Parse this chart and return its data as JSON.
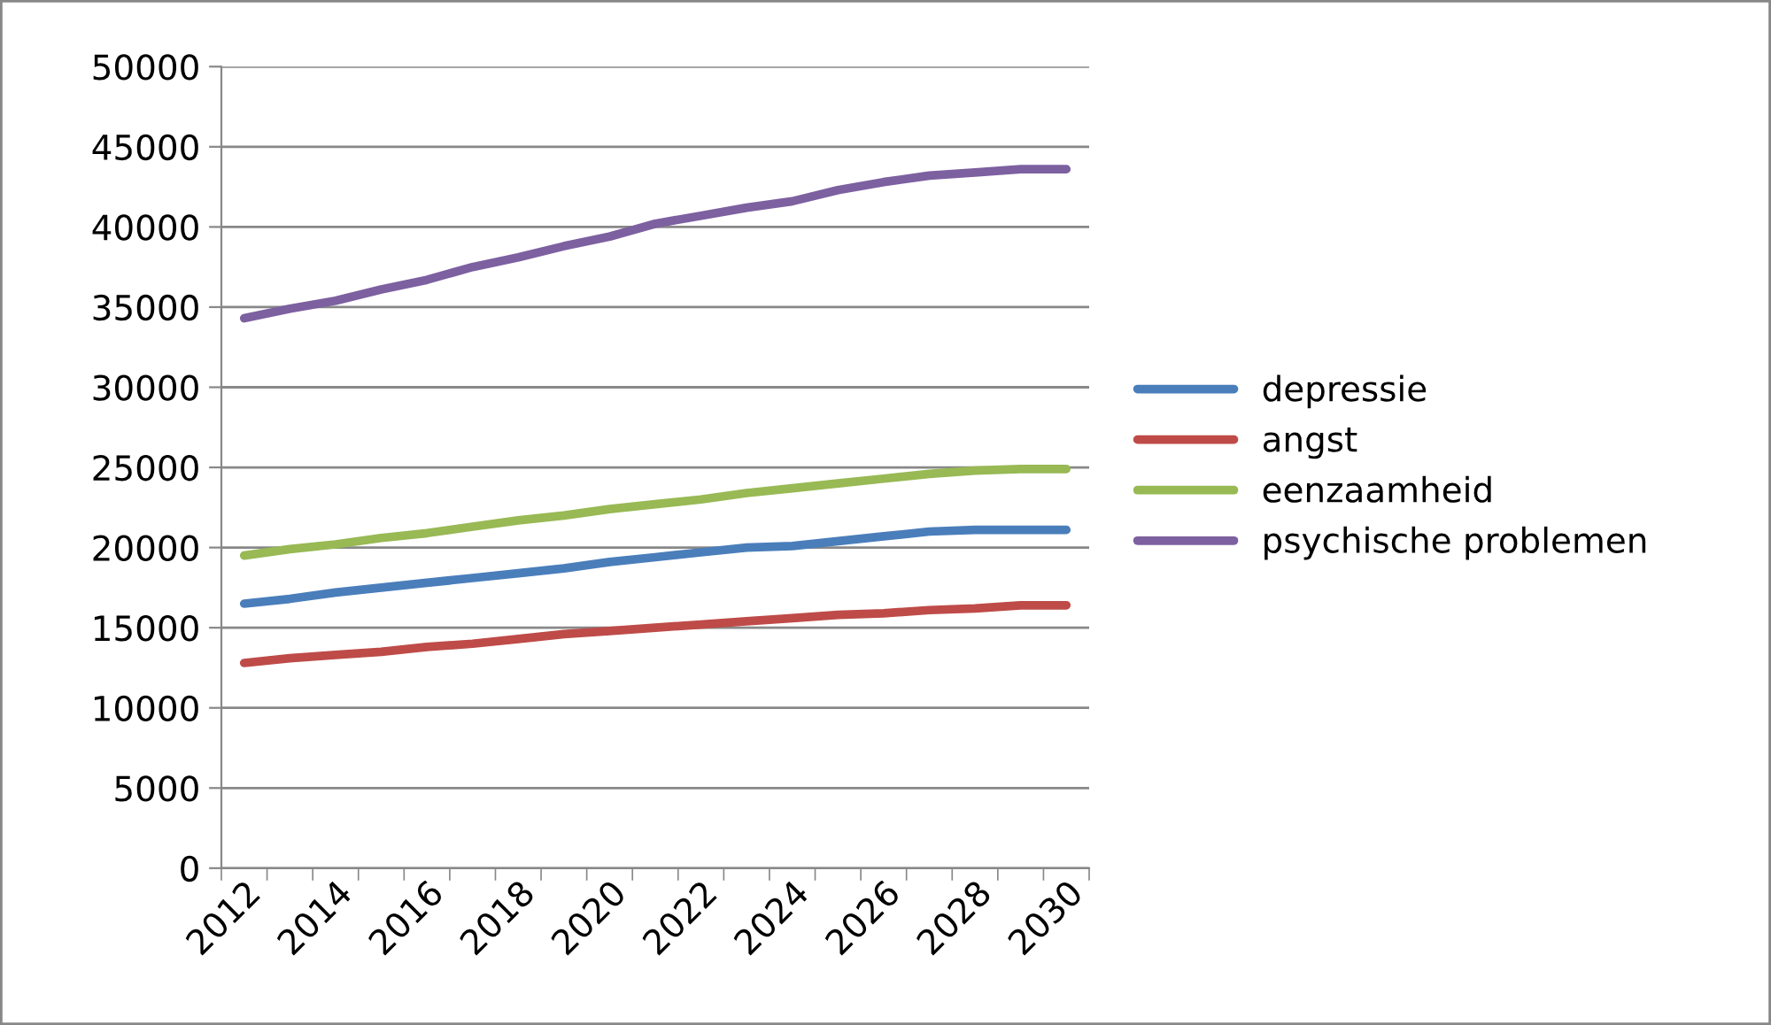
{
  "chart_data": {
    "type": "line",
    "categories": [
      "2012",
      null,
      "2014",
      null,
      "2016",
      null,
      "2018",
      null,
      "2020",
      null,
      "2022",
      null,
      "2024",
      null,
      "2026",
      null,
      "2028",
      null,
      "2030"
    ],
    "series": [
      {
        "name": "depressie",
        "color": "#4a7ebb",
        "values": [
          16500,
          16800,
          17200,
          17500,
          17800,
          18100,
          18400,
          18700,
          19100,
          19400,
          19700,
          20000,
          20100,
          20400,
          20700,
          21000,
          21100,
          21100,
          21100
        ]
      },
      {
        "name": "angst",
        "color": "#be4b48",
        "values": [
          12800,
          13100,
          13300,
          13500,
          13800,
          14000,
          14300,
          14600,
          14800,
          15000,
          15200,
          15400,
          15600,
          15800,
          15900,
          16100,
          16200,
          16400,
          16400
        ]
      },
      {
        "name": "eenzaamheid",
        "color": "#98b954",
        "values": [
          19500,
          19900,
          20200,
          20600,
          20900,
          21300,
          21700,
          22000,
          22400,
          22700,
          23000,
          23400,
          23700,
          24000,
          24300,
          24600,
          24800,
          24900,
          24900
        ]
      },
      {
        "name": "psychische problemen",
        "color": "#7d60a0",
        "values": [
          34300,
          34900,
          35400,
          36100,
          36700,
          37500,
          38100,
          38800,
          39400,
          40200,
          40700,
          41200,
          41600,
          42300,
          42800,
          43200,
          43400,
          43600,
          43600
        ]
      }
    ],
    "ylim": [
      0,
      50000
    ],
    "yticks": [
      0,
      5000,
      10000,
      15000,
      20000,
      25000,
      30000,
      35000,
      40000,
      45000,
      50000
    ],
    "grid": "y",
    "legend": "right",
    "marker": "none",
    "line_style": "solid"
  }
}
